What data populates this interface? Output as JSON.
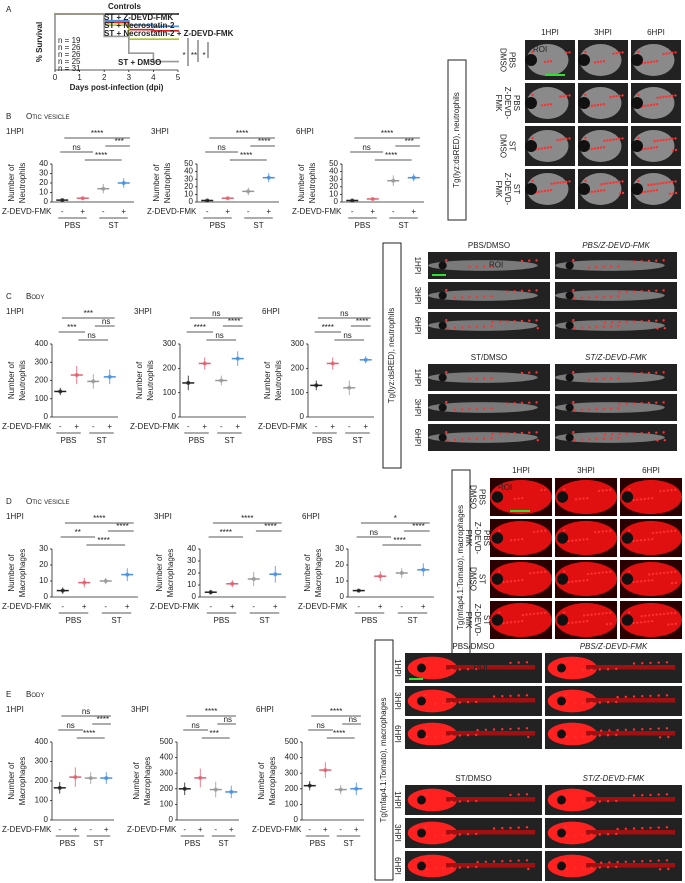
{
  "panel_labels": [
    "A",
    "B",
    "C",
    "D",
    "E"
  ],
  "sections": [
    "Otic vesicle",
    "Body",
    "Otic vesicle",
    "Body"
  ],
  "chart_data": [
    {
      "type": "line",
      "xlabel": "Days post-infection (dpi)",
      "ylabel": "% Survival",
      "x": [
        0,
        1,
        2,
        3,
        4,
        5
      ],
      "xlim": [
        0,
        5
      ],
      "xticks": [
        0,
        1,
        2,
        3,
        4,
        5
      ],
      "ylim": [
        0,
        100
      ],
      "series": [
        {
          "name": "Controls",
          "color": "#222222",
          "values": [
            100,
            100,
            100,
            100,
            100,
            100
          ]
        },
        {
          "name": "ST + Z-DEVD-FMK",
          "color": "#4a90e0",
          "values": [
            100,
            100,
            88,
            80,
            78,
            78
          ]
        },
        {
          "name": "ST + Necrostatin-2",
          "color": "#e02020",
          "values": [
            100,
            100,
            85,
            72,
            70,
            70
          ]
        },
        {
          "name": "ST + Necrostatin-2 + Z-DEVD-FMK",
          "color": "#a8c820",
          "values": [
            100,
            100,
            80,
            55,
            55,
            55
          ]
        },
        {
          "name": "ST + DMSO",
          "color": "#999999",
          "values": [
            100,
            100,
            60,
            30,
            15,
            15
          ]
        }
      ],
      "n_labels": [
        {
          "text": "n = 19",
          "color": "#222222"
        },
        {
          "text": "n = 26",
          "color": "#999999"
        },
        {
          "text": "n = 26",
          "color": "#4a90e0"
        },
        {
          "text": "n = 25",
          "color": "#e02020"
        },
        {
          "text": "n = 31",
          "color": "#c8b820"
        }
      ],
      "significance": [
        "*",
        "**",
        "*"
      ]
    },
    {
      "type": "dot",
      "title": "1HPI",
      "ylabel": [
        "Number of",
        "Neutrophils"
      ],
      "ylim": [
        0,
        40
      ],
      "yticks": [
        0,
        10,
        20,
        30,
        40
      ],
      "values": [
        2,
        4,
        14,
        20
      ],
      "errors": [
        1,
        1,
        5,
        5
      ],
      "annotations": [
        "****",
        "***",
        "ns",
        "****"
      ],
      "categories": [
        "-",
        "+",
        "-",
        "+"
      ],
      "groups": [
        "PBS",
        "ST"
      ],
      "treatment": "Z-DEVD-FMK",
      "colors": [
        "#222222",
        "#e06070",
        "#999999",
        "#4a90e0"
      ]
    },
    {
      "type": "dot",
      "title": "3HPI",
      "ylabel": [
        "Number of",
        "Neutrophils"
      ],
      "ylim": [
        0,
        50
      ],
      "yticks": [
        0,
        10,
        20,
        30,
        40,
        50
      ],
      "values": [
        2,
        5,
        14,
        32
      ],
      "errors": [
        1,
        1,
        5,
        6
      ],
      "annotations": [
        "****",
        "****",
        "ns",
        "****"
      ],
      "categories": [
        "-",
        "+",
        "-",
        "+"
      ],
      "groups": [
        "PBS",
        "ST"
      ],
      "treatment": "Z-DEVD-FMK",
      "colors": [
        "#222222",
        "#e06070",
        "#999999",
        "#4a90e0"
      ]
    },
    {
      "type": "dot",
      "title": "6HPI",
      "ylabel": [
        "Number of",
        "Neutrophils"
      ],
      "ylim": [
        0,
        50
      ],
      "yticks": [
        0,
        10,
        20,
        30,
        40,
        50
      ],
      "values": [
        2,
        4,
        28,
        32
      ],
      "errors": [
        1,
        1,
        7,
        5
      ],
      "annotations": [
        "****",
        "***",
        "ns",
        "****"
      ],
      "categories": [
        "-",
        "+",
        "-",
        "+"
      ],
      "groups": [
        "PBS",
        "ST"
      ],
      "treatment": "Z-DEVD-FMK",
      "colors": [
        "#222222",
        "#e06070",
        "#999999",
        "#4a90e0"
      ]
    },
    {
      "type": "dot",
      "title": "1HPI",
      "ylabel": [
        "Number of",
        "Neutrophils"
      ],
      "ylim": [
        0,
        400
      ],
      "yticks": [
        0,
        100,
        200,
        300,
        400
      ],
      "values": [
        140,
        230,
        195,
        220
      ],
      "errors": [
        20,
        50,
        40,
        40
      ],
      "annotations": [
        "***",
        "ns",
        "***",
        "ns"
      ],
      "categories": [
        "-",
        "+",
        "-",
        "+"
      ],
      "groups": [
        "PBS",
        "ST"
      ],
      "treatment": "Z-DEVD-FMK",
      "colors": [
        "#222222",
        "#e06070",
        "#999999",
        "#4a90e0"
      ]
    },
    {
      "type": "dot",
      "title": "3HPI",
      "ylabel": [
        "Number of",
        "Neutrophils"
      ],
      "ylim": [
        0,
        300
      ],
      "yticks": [
        0,
        100,
        200,
        300
      ],
      "values": [
        140,
        220,
        150,
        240
      ],
      "errors": [
        30,
        25,
        20,
        30
      ],
      "annotations": [
        "ns",
        "****",
        "****",
        "ns"
      ],
      "categories": [
        "-",
        "+",
        "-",
        "+"
      ],
      "groups": [
        "PBS",
        "ST"
      ],
      "treatment": "Z-DEVD-FMK",
      "colors": [
        "#222222",
        "#e06070",
        "#999999",
        "#4a90e0"
      ]
    },
    {
      "type": "dot",
      "title": "6HPI",
      "ylabel": [
        "Number of",
        "Neutrophils"
      ],
      "ylim": [
        0,
        300
      ],
      "yticks": [
        0,
        100,
        200,
        300
      ],
      "values": [
        130,
        220,
        120,
        235
      ],
      "errors": [
        20,
        25,
        30,
        15
      ],
      "annotations": [
        "ns",
        "****",
        "****",
        "ns"
      ],
      "categories": [
        "-",
        "+",
        "-",
        "+"
      ],
      "groups": [
        "PBS",
        "ST"
      ],
      "treatment": "Z-DEVD-FMK",
      "colors": [
        "#222222",
        "#e06070",
        "#999999",
        "#4a90e0"
      ]
    },
    {
      "type": "dot",
      "title": "1HPI",
      "ylabel": [
        "Number of",
        "Macrophages"
      ],
      "ylim": [
        0,
        30
      ],
      "yticks": [
        0,
        10,
        20,
        30
      ],
      "values": [
        4,
        9,
        10,
        14
      ],
      "errors": [
        2,
        3,
        2,
        4
      ],
      "annotations": [
        "****",
        "****",
        "**",
        "****"
      ],
      "categories": [
        "-",
        "+",
        "-",
        "+"
      ],
      "groups": [
        "PBS",
        "ST"
      ],
      "treatment": "Z-DEVD-FMK",
      "colors": [
        "#222222",
        "#e06070",
        "#999999",
        "#4a90e0"
      ]
    },
    {
      "type": "dot",
      "title": "3HPI",
      "ylabel": [
        "Number of",
        "Macrophages"
      ],
      "ylim": [
        0,
        40
      ],
      "yticks": [
        0,
        10,
        20,
        30,
        40
      ],
      "values": [
        4,
        11,
        15,
        19
      ],
      "errors": [
        2,
        3,
        6,
        7
      ],
      "annotations": [
        "****",
        "****",
        "****"
      ],
      "categories": [
        "-",
        "+",
        "-",
        "+"
      ],
      "groups": [
        "PBS",
        "ST"
      ],
      "treatment": "Z-DEVD-FMK",
      "colors": [
        "#222222",
        "#e06070",
        "#999999",
        "#4a90e0"
      ]
    },
    {
      "type": "dot",
      "title": "6HPI",
      "ylabel": [
        "Number of",
        "Macrophages"
      ],
      "ylim": [
        0,
        30
      ],
      "yticks": [
        0,
        10,
        20,
        30
      ],
      "values": [
        4,
        13,
        15,
        17
      ],
      "errors": [
        1,
        3,
        3,
        4
      ],
      "annotations": [
        "*",
        "****",
        "ns",
        "****"
      ],
      "categories": [
        "-",
        "+",
        "-",
        "+"
      ],
      "groups": [
        "PBS",
        "ST"
      ],
      "treatment": "Z-DEVD-FMK",
      "colors": [
        "#222222",
        "#e06070",
        "#999999",
        "#4a90e0"
      ]
    },
    {
      "type": "dot",
      "title": "1HPI",
      "ylabel": [
        "Number of",
        "Macrophages"
      ],
      "ylim": [
        0,
        400
      ],
      "yticks": [
        0,
        100,
        200,
        300,
        400
      ],
      "values": [
        165,
        220,
        215,
        215
      ],
      "errors": [
        30,
        50,
        30,
        30
      ],
      "annotations": [
        "ns",
        "****",
        "ns",
        "****"
      ],
      "categories": [
        "-",
        "+",
        "-",
        "+"
      ],
      "groups": [
        "PBS",
        "ST"
      ],
      "treatment": "Z-DEVD-FMK",
      "colors": [
        "#222222",
        "#e06070",
        "#999999",
        "#4a90e0"
      ]
    },
    {
      "type": "dot",
      "title": "3HPI",
      "ylabel": [
        "Number of",
        "Macrophages"
      ],
      "ylim": [
        0,
        500
      ],
      "yticks": [
        0,
        100,
        200,
        300,
        400,
        500
      ],
      "values": [
        200,
        270,
        195,
        180
      ],
      "errors": [
        40,
        60,
        50,
        40
      ],
      "annotations": [
        "****",
        "ns",
        "ns",
        "***"
      ],
      "categories": [
        "-",
        "+",
        "-",
        "+"
      ],
      "groups": [
        "PBS",
        "ST"
      ],
      "treatment": "Z-DEVD-FMK",
      "colors": [
        "#222222",
        "#e06070",
        "#999999",
        "#4a90e0"
      ]
    },
    {
      "type": "dot",
      "title": "6HPI",
      "ylabel": [
        "Number of",
        "Macrophages"
      ],
      "ylim": [
        0,
        500
      ],
      "yticks": [
        0,
        100,
        200,
        300,
        400,
        500
      ],
      "values": [
        220,
        320,
        195,
        200
      ],
      "errors": [
        30,
        50,
        30,
        40
      ],
      "annotations": [
        "****",
        "ns",
        "ns",
        "****"
      ],
      "categories": [
        "-",
        "+",
        "-",
        "+"
      ],
      "groups": [
        "PBS",
        "ST"
      ],
      "treatment": "Z-DEVD-FMK",
      "colors": [
        "#222222",
        "#e06070",
        "#999999",
        "#4a90e0"
      ]
    }
  ],
  "images": [
    {
      "label": "Tg(lyz:dsRED), neutrophils",
      "columns": [
        "1HPI",
        "3HPI",
        "6HPI"
      ],
      "rows": [
        [
          "PBS",
          "DMSO"
        ],
        [
          "PBS",
          "Z-DEVD-",
          "FMK"
        ],
        [
          "ST",
          "DMSO"
        ],
        [
          "ST",
          "Z-DEVD-",
          "FMK"
        ]
      ],
      "row_colors": [
        "#222222",
        "#9cc4ee",
        "#555555",
        "#1f4fa8"
      ],
      "roi": "ROI"
    },
    {
      "label": "Tg(lyz:dsRED), neutrophils",
      "titles": [
        "PBS/DMSO",
        "PBS/Z-DEVD-FMK",
        "ST/DMSO",
        "ST/Z-DEVD-FMK"
      ],
      "title_colors": [
        "#222222",
        "#9cc4ee",
        "#222222",
        "#1f4fa8"
      ],
      "rows": [
        "1HPI",
        "3HPI",
        "6HPI"
      ],
      "roi": "ROI"
    },
    {
      "label": "Tg(mfap4.1:Tomato), macrophages",
      "columns": [
        "1HPI",
        "3HPI",
        "6HPI"
      ],
      "rows": [
        [
          "PBS",
          "DMSO"
        ],
        [
          "PBS",
          "Z-DEVD-",
          "FMK"
        ],
        [
          "ST",
          "DMSO"
        ],
        [
          "ST",
          "Z-DEVD-",
          "FMK"
        ]
      ],
      "row_colors": [
        "#222222",
        "#9cc4ee",
        "#555555",
        "#1f4fa8"
      ],
      "roi": "ROI"
    },
    {
      "label": "Tg(mfap4.1:Tomato), macrophages",
      "titles": [
        "PBS/DMSO",
        "PBS/Z-DEVD-FMK",
        "ST/DMSO",
        "ST/Z-DEVD-FMK"
      ],
      "title_colors": [
        "#222222",
        "#9cc4ee",
        "#222222",
        "#1f4fa8"
      ],
      "rows": [
        "1HPI",
        "3HPI",
        "6HPI"
      ],
      "roi": "ROI"
    }
  ]
}
